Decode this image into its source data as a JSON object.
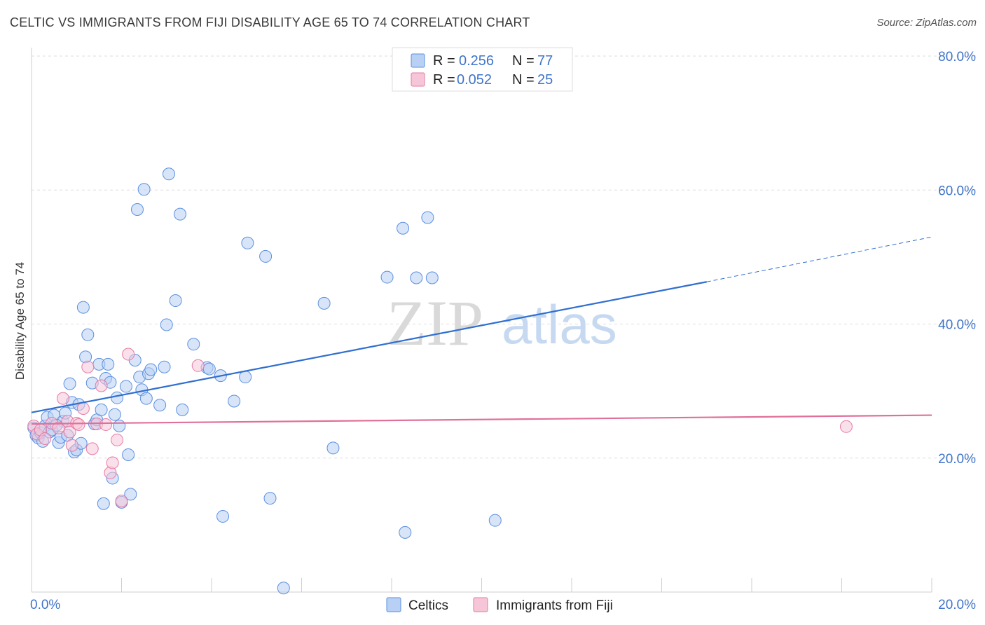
{
  "title": "CELTIC VS IMMIGRANTS FROM FIJI DISABILITY AGE 65 TO 74 CORRELATION CHART",
  "source": "Source: ZipAtlas.com",
  "watermark": {
    "part1": "ZIP",
    "part2": "atlas"
  },
  "legend_top": [
    {
      "r_label": "R =",
      "r_value": "0.256",
      "n_label": "N =",
      "n_value": "77"
    },
    {
      "r_label": "R =",
      "r_value": "0.052",
      "n_label": "N =",
      "n_value": "25"
    }
  ],
  "legend_bottom": [
    "Celtics",
    "Immigrants from Fiji"
  ],
  "colors": {
    "celtics": "#5b8fe0",
    "celtics_fill": "#b8d0f4",
    "celtics_line": "#2f6fd0",
    "fiji": "#e67ba3",
    "fiji_fill": "#f6c6d8",
    "fiji_line": "#e0709a",
    "tick": "#3f74c9"
  },
  "chart_data": {
    "type": "scatter",
    "title": "CELTIC VS IMMIGRANTS FROM FIJI DISABILITY AGE 65 TO 74 CORRELATION CHART",
    "xlabel": "",
    "ylabel": "Disability Age 65 to 74",
    "xlim": [
      0,
      20
    ],
    "ylim": [
      0,
      80
    ],
    "x_tick_labels": [
      "0.0%",
      "20.0%"
    ],
    "y_ticks": [
      20,
      40,
      60,
      80
    ],
    "y_tick_labels": [
      "20.0%",
      "40.0%",
      "60.0%",
      "80.0%"
    ],
    "grid": true,
    "legend_placement": "top-center",
    "series": [
      {
        "name": "Celtics",
        "points": [
          [
            0.05,
            24.5
          ],
          [
            0.1,
            23.4
          ],
          [
            0.15,
            23.0
          ],
          [
            0.2,
            23.8
          ],
          [
            0.25,
            22.5
          ],
          [
            0.3,
            24.8
          ],
          [
            0.35,
            26.1
          ],
          [
            0.4,
            23.9
          ],
          [
            0.45,
            24.2
          ],
          [
            0.5,
            26.4
          ],
          [
            0.6,
            22.3
          ],
          [
            0.65,
            23.1
          ],
          [
            0.7,
            25.5
          ],
          [
            0.75,
            26.7
          ],
          [
            0.8,
            23.4
          ],
          [
            0.85,
            31.1
          ],
          [
            0.9,
            28.3
          ],
          [
            0.95,
            20.9
          ],
          [
            1.0,
            21.2
          ],
          [
            1.05,
            28.0
          ],
          [
            1.1,
            22.2
          ],
          [
            1.15,
            42.5
          ],
          [
            1.2,
            35.1
          ],
          [
            1.25,
            38.4
          ],
          [
            1.35,
            31.2
          ],
          [
            1.4,
            25.1
          ],
          [
            1.45,
            25.7
          ],
          [
            1.5,
            34.0
          ],
          [
            1.55,
            27.2
          ],
          [
            1.6,
            13.2
          ],
          [
            1.65,
            31.9
          ],
          [
            1.7,
            34.0
          ],
          [
            1.75,
            31.3
          ],
          [
            1.8,
            17.0
          ],
          [
            1.85,
            26.5
          ],
          [
            1.9,
            29.0
          ],
          [
            1.95,
            24.8
          ],
          [
            2.0,
            13.4
          ],
          [
            2.1,
            30.7
          ],
          [
            2.15,
            20.5
          ],
          [
            2.2,
            14.6
          ],
          [
            2.3,
            34.6
          ],
          [
            2.35,
            57.1
          ],
          [
            2.4,
            32.1
          ],
          [
            2.45,
            30.2
          ],
          [
            2.5,
            60.1
          ],
          [
            2.55,
            28.9
          ],
          [
            2.6,
            32.6
          ],
          [
            2.65,
            33.2
          ],
          [
            2.85,
            27.9
          ],
          [
            2.95,
            33.6
          ],
          [
            3.0,
            39.9
          ],
          [
            3.05,
            62.4
          ],
          [
            3.2,
            43.5
          ],
          [
            3.3,
            56.4
          ],
          [
            3.35,
            27.2
          ],
          [
            3.6,
            37.0
          ],
          [
            3.9,
            33.5
          ],
          [
            3.95,
            33.3
          ],
          [
            4.2,
            32.3
          ],
          [
            4.25,
            11.3
          ],
          [
            4.5,
            28.5
          ],
          [
            4.75,
            32.1
          ],
          [
            4.8,
            52.1
          ],
          [
            5.2,
            50.1
          ],
          [
            5.3,
            14.0
          ],
          [
            5.6,
            0.6
          ],
          [
            6.5,
            43.1
          ],
          [
            6.7,
            21.5
          ],
          [
            7.9,
            47.0
          ],
          [
            8.25,
            54.3
          ],
          [
            8.3,
            8.9
          ],
          [
            8.55,
            46.9
          ],
          [
            8.8,
            55.9
          ],
          [
            8.9,
            46.9
          ],
          [
            10.3,
            10.7
          ],
          [
            0.55,
            24.9
          ]
        ],
        "trend": {
          "x": [
            0,
            15
          ],
          "y": [
            26.8,
            46.3
          ],
          "dashed_extension_x": [
            15,
            20
          ],
          "dashed_extension_y": [
            46.3,
            53.0
          ]
        }
      },
      {
        "name": "Immigrants from Fiji",
        "points": [
          [
            0.05,
            24.8
          ],
          [
            0.12,
            23.6
          ],
          [
            0.2,
            24.2
          ],
          [
            0.3,
            22.9
          ],
          [
            0.45,
            25.2
          ],
          [
            0.6,
            24.5
          ],
          [
            0.7,
            28.9
          ],
          [
            0.8,
            25.5
          ],
          [
            0.85,
            23.9
          ],
          [
            0.9,
            21.9
          ],
          [
            1.0,
            25.2
          ],
          [
            1.05,
            25.0
          ],
          [
            1.15,
            27.4
          ],
          [
            1.25,
            33.6
          ],
          [
            1.35,
            21.4
          ],
          [
            1.45,
            25.1
          ],
          [
            1.55,
            30.8
          ],
          [
            1.65,
            25.0
          ],
          [
            1.75,
            17.8
          ],
          [
            1.8,
            19.3
          ],
          [
            1.9,
            22.7
          ],
          [
            2.0,
            13.6
          ],
          [
            2.15,
            35.5
          ],
          [
            3.7,
            33.8
          ],
          [
            18.1,
            24.7
          ]
        ],
        "trend": {
          "x": [
            0,
            20
          ],
          "y": [
            25.1,
            26.4
          ]
        }
      }
    ]
  }
}
